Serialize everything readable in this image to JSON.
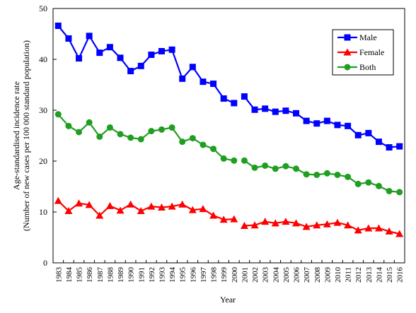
{
  "chart_data": {
    "type": "line",
    "title": "",
    "xlabel": "Year",
    "ylabel": "Age-standardised incidence rate",
    "ylabel_sub": "(Number of new cases per 100 000 standard population)",
    "ylim": [
      0,
      50
    ],
    "yticks": [
      0,
      10,
      20,
      30,
      40,
      50
    ],
    "x": [
      1983,
      1984,
      1985,
      1986,
      1987,
      1988,
      1989,
      1990,
      1991,
      1992,
      1993,
      1994,
      1995,
      1996,
      1997,
      1998,
      1999,
      2000,
      2001,
      2002,
      2003,
      2004,
      2005,
      2006,
      2007,
      2008,
      2009,
      2010,
      2011,
      2012,
      2013,
      2014,
      2015,
      2016
    ],
    "break_after": 2000,
    "legend_position": "top-right",
    "grid": false,
    "series": [
      {
        "name": "Male",
        "color": "#0000ff",
        "marker": "square",
        "values": [
          46.6,
          44.1,
          40.2,
          44.6,
          41.3,
          42.4,
          40.3,
          37.7,
          38.7,
          40.9,
          41.6,
          41.9,
          36.2,
          38.5,
          35.6,
          35.2,
          32.3,
          31.4,
          32.7,
          30.1,
          30.3,
          29.7,
          29.9,
          29.4,
          27.9,
          27.4,
          27.9,
          27.1,
          26.9,
          25.1,
          25.5,
          23.8,
          22.7,
          22.9
        ]
      },
      {
        "name": "Female",
        "color": "#ff0000",
        "marker": "triangle",
        "values": [
          12.2,
          10.2,
          11.7,
          11.4,
          9.3,
          11.2,
          10.3,
          11.5,
          10.2,
          11.1,
          10.9,
          11.1,
          11.5,
          10.4,
          10.6,
          9.3,
          8.5,
          8.6,
          7.3,
          7.4,
          8.1,
          7.8,
          8.1,
          7.8,
          7.1,
          7.4,
          7.6,
          7.9,
          7.4,
          6.4,
          6.8,
          6.8,
          6.2,
          5.7
        ]
      },
      {
        "name": "Both",
        "color": "#1f9e1f",
        "marker": "circle",
        "values": [
          29.2,
          26.9,
          25.7,
          27.6,
          24.8,
          26.6,
          25.3,
          24.6,
          24.3,
          25.9,
          26.2,
          26.6,
          23.8,
          24.5,
          23.2,
          22.4,
          20.5,
          20.1,
          20.1,
          18.7,
          19.1,
          18.5,
          19.0,
          18.5,
          17.4,
          17.3,
          17.6,
          17.3,
          16.9,
          15.5,
          15.8,
          15.1,
          14.1,
          13.9
        ]
      }
    ]
  }
}
